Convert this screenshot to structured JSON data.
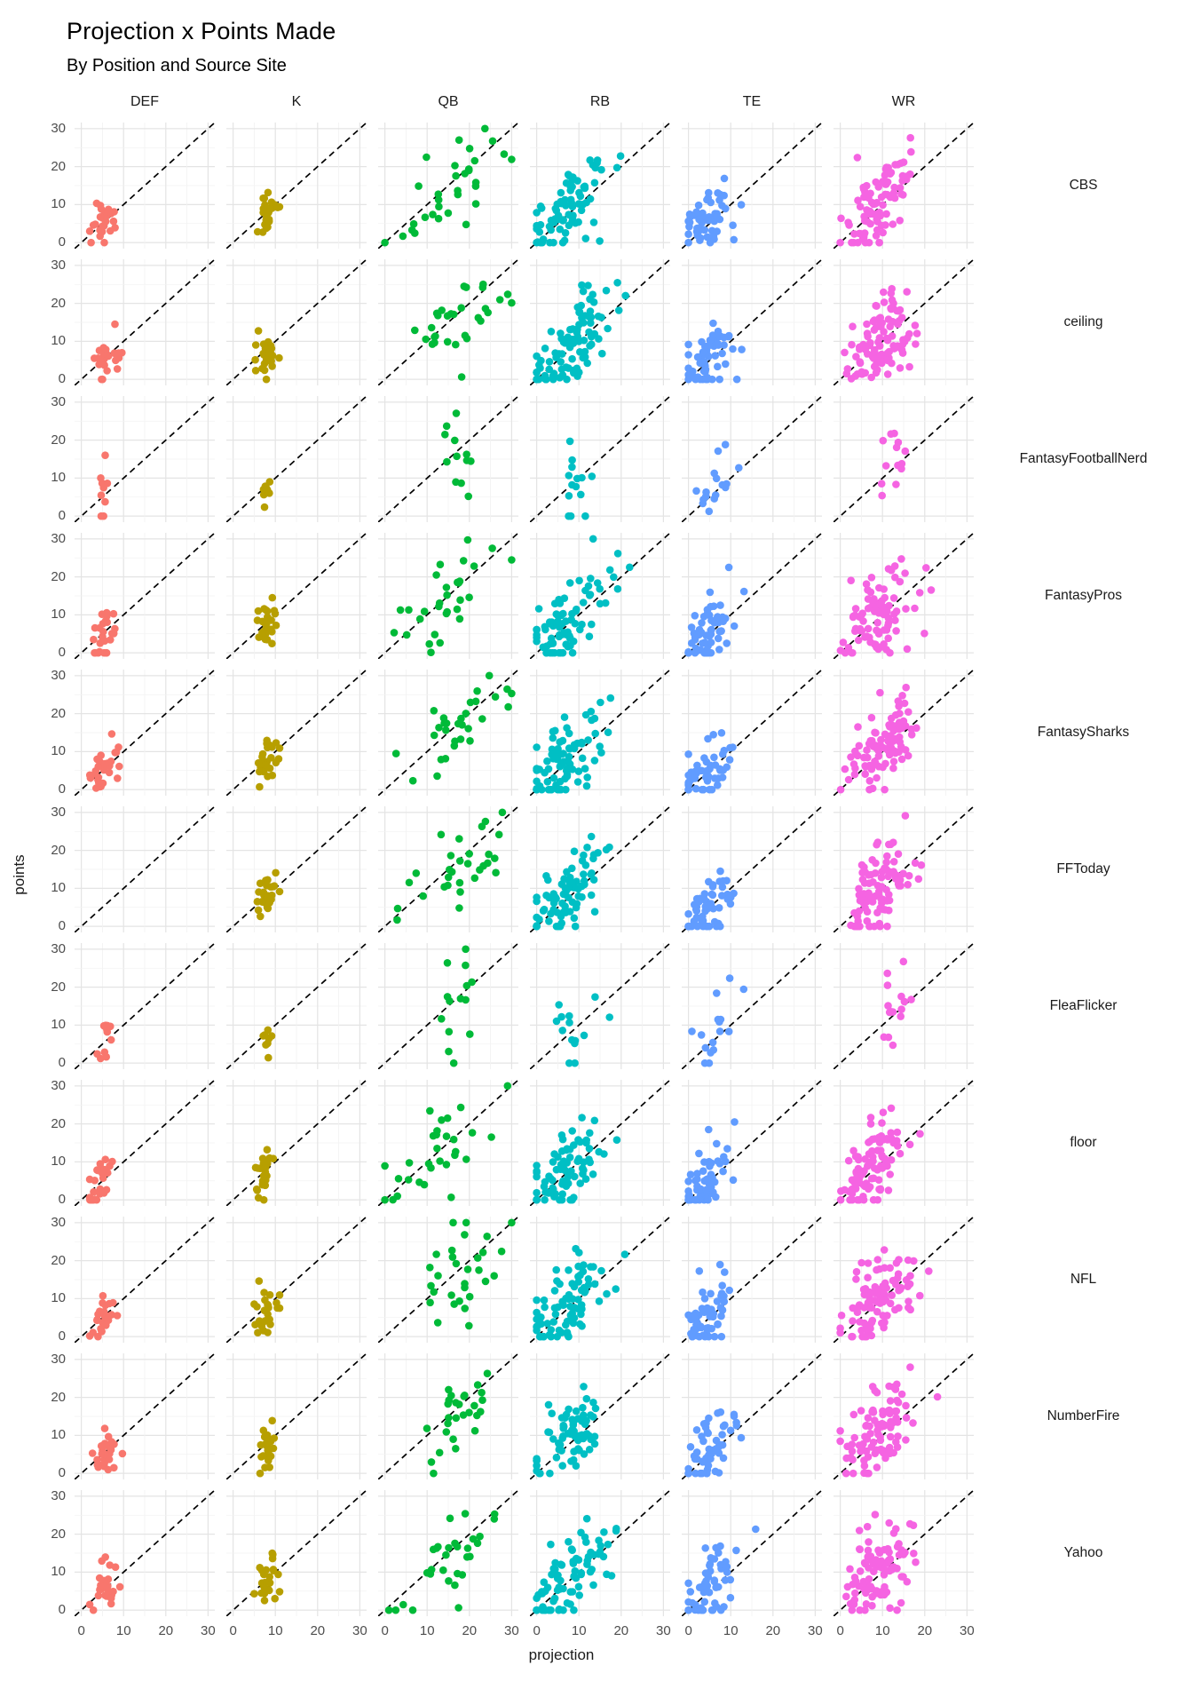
{
  "title": "Projection x Points Made",
  "subtitle": "By Position and Source Site",
  "axes": {
    "x_title": "projection",
    "y_title": "points",
    "x_ticks": [
      0,
      10,
      20,
      30
    ],
    "y_ticks": [
      30,
      20,
      10,
      0
    ],
    "x_range": [
      0,
      30
    ],
    "y_range": [
      0,
      30
    ],
    "expand": 1.6
  },
  "style": {
    "grid_major_color": "#e4e4e4",
    "grid_minor_color": "#f2f2f2",
    "grid_minor_values": [
      5,
      15,
      25
    ],
    "identity_line_color": "#000000",
    "tick_label_color": "#4d4d4d",
    "strip_label_color": "#1a1a1a",
    "point_radius": 4.3
  },
  "chart_data": {
    "type": "scatter",
    "facets_by": [
      "source_site_rows",
      "position_columns"
    ],
    "identity_line": {
      "slope": 1,
      "intercept": 0,
      "style": "dashed"
    },
    "columns": [
      {
        "label": "DEF",
        "color": "#F8766D"
      },
      {
        "label": "K",
        "color": "#B79F00"
      },
      {
        "label": "QB",
        "color": "#00BA38"
      },
      {
        "label": "RB",
        "color": "#00BFC4"
      },
      {
        "label": "TE",
        "color": "#619CFF"
      },
      {
        "label": "WR",
        "color": "#F564E2"
      }
    ],
    "rows": [
      "CBS",
      "ceiling",
      "FantasyFootballNerd",
      "FantasyPros",
      "FantasySharks",
      "FFToday",
      "FleaFlicker",
      "floor",
      "NFL",
      "NumberFire",
      "Yahoo"
    ],
    "point_distributions": {
      "base": {
        "DEF": {
          "n": 26,
          "xmu": 5.5,
          "xsd": 1.6,
          "xmin": 2,
          "xmax": 11,
          "b0": 1.2,
          "b1": 0.8,
          "noise": 3.2,
          "ymin": 0,
          "ymax": 16
        },
        "K": {
          "n": 27,
          "xmu": 8.0,
          "xsd": 1.2,
          "xmin": 5,
          "xmax": 11,
          "b0": 1.5,
          "b1": 0.7,
          "noise": 3.0,
          "ymin": 0,
          "ymax": 15
        },
        "QB": {
          "n": 30,
          "xmu": 16,
          "xsd": 6.5,
          "xmin": 0,
          "xmax": 30,
          "b0": 3.0,
          "b1": 0.75,
          "noise": 6.0,
          "ymin": 0,
          "ymax": 30
        },
        "RB": {
          "n": 80,
          "xmu": 7.5,
          "xsd": 4.8,
          "xmin": 0,
          "xmax": 22,
          "b0": 1.5,
          "b1": 0.95,
          "noise": 5.0,
          "ymin": 0,
          "ymax": 30
        },
        "TE": {
          "n": 55,
          "xmu": 5.0,
          "xsd": 3.2,
          "xmin": 0,
          "xmax": 17,
          "b0": 1.5,
          "b1": 0.9,
          "noise": 4.5,
          "ymin": 0,
          "ymax": 30
        },
        "WR": {
          "n": 95,
          "xmu": 9.0,
          "xsd": 4.2,
          "xmin": 0,
          "xmax": 23,
          "b0": 2.0,
          "b1": 0.9,
          "noise": 5.5,
          "ymin": 0,
          "ymax": 30
        }
      },
      "row_overrides": {
        "CBS": {
          "QB": {
            "n": 32
          }
        },
        "ceiling": {
          "DEF": {
            "xmu": 6
          },
          "QB": {
            "xmu": 18
          },
          "RB": {
            "n": 95,
            "xmu": 8.5
          },
          "TE": {
            "n": 60
          },
          "WR": {
            "n": 105,
            "xmu": 10
          }
        },
        "FantasyFootballNerd": {
          "DEF": {
            "n": 9,
            "xmu": 5.5,
            "xsd": 0.8,
            "noise": 3.5
          },
          "K": {
            "n": 8,
            "xsd": 0.8
          },
          "QB": {
            "n": 12,
            "xmu": 16.5,
            "xsd": 2.0,
            "noise": 7.0
          },
          "RB": {
            "n": 14,
            "xmu": 10,
            "xsd": 2.5,
            "noise": 6.0
          },
          "TE": {
            "n": 16,
            "xmu": 7,
            "xsd": 2.4,
            "noise": 6.0
          },
          "WR": {
            "n": 13,
            "xmu": 13,
            "xsd": 1.8,
            "noise": 6.0
          }
        },
        "FantasyPros": {
          "TE": {
            "n": 60
          }
        },
        "FantasySharks": {
          "DEF": {
            "n": 30,
            "xsd": 2.0
          }
        },
        "FFToday": {
          "DEF": {
            "n": 0
          },
          "QB": {
            "xmu": 17
          }
        },
        "FleaFlicker": {
          "DEF": {
            "n": 11,
            "xsd": 1.0
          },
          "K": {
            "n": 8,
            "xsd": 0.9
          },
          "QB": {
            "n": 14,
            "xmu": 17,
            "xsd": 2.6,
            "noise": 7.0
          },
          "RB": {
            "n": 14,
            "xmu": 9,
            "xsd": 3.0,
            "noise": 6.0
          },
          "TE": {
            "n": 16,
            "xmu": 6,
            "xsd": 3.0,
            "noise": 6.0
          },
          "WR": {
            "n": 15,
            "xmu": 12,
            "xsd": 2.0,
            "noise": 6.0
          }
        },
        "floor": {
          "DEF": {
            "xmu": 4.5
          },
          "K": {
            "xmu": 7
          },
          "QB": {
            "xmu": 13,
            "xsd": 6.0
          },
          "RB": {
            "xmu": 6.5
          },
          "TE": {
            "xmu": 4.5
          },
          "WR": {
            "xmu": 8
          }
        },
        "NFL": {},
        "NumberFire": {
          "K": {
            "n": 22,
            "xsd": 1.0
          },
          "QB": {
            "n": 28,
            "xmu": 16,
            "xsd": 4.5,
            "xmin": 1
          },
          "RB": {
            "n": 70
          }
        },
        "Yahoo": {}
      },
      "seed": {
        "row_mult": 101,
        "col_mult": 17,
        "offset": 7
      }
    }
  }
}
